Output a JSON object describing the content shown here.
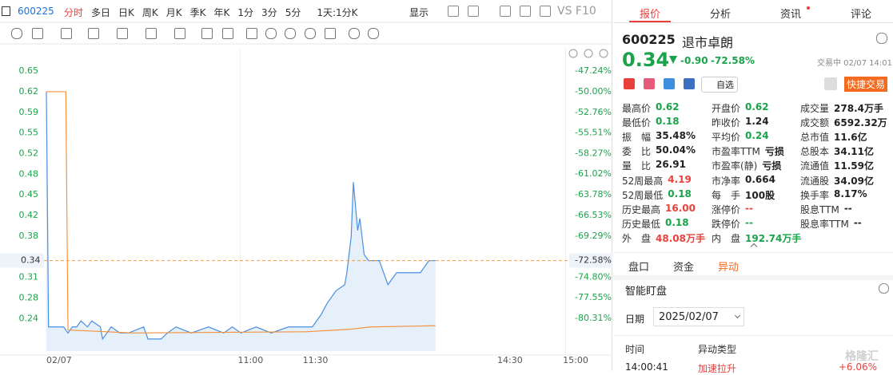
{
  "toolbar": {
    "code": "600225",
    "tabs": [
      "分时",
      "多日",
      "日K",
      "周K",
      "月K",
      "季K",
      "年K",
      "1分",
      "3分",
      "5分",
      "1天:1分K"
    ],
    "active": "分时",
    "display": "显示",
    "compare": "VS F10"
  },
  "chart_data": {
    "type": "line",
    "xlim": [
      0,
      240
    ],
    "xticks": [
      {
        "value": 0,
        "label": "02/07"
      },
      {
        "value": 90,
        "label": "11:00"
      },
      {
        "value": 120,
        "label": "11:30"
      },
      {
        "value": 210,
        "label": "14:30"
      },
      {
        "value": 240,
        "label": "15:00"
      }
    ],
    "ylim": [
      0.19,
      0.69
    ],
    "yticks": [
      {
        "value": 0.6542,
        "label": "0.65"
      },
      {
        "value": 0.62,
        "label": "0.62"
      },
      {
        "value": 0.5858,
        "label": "0.59"
      },
      {
        "value": 0.5516,
        "label": "0.55"
      },
      {
        "value": 0.5174,
        "label": "0.52"
      },
      {
        "value": 0.4832,
        "label": "0.48"
      },
      {
        "value": 0.449,
        "label": "0.45"
      },
      {
        "value": 0.4148,
        "label": "0.42"
      },
      {
        "value": 0.3806,
        "label": "0.38"
      },
      {
        "value": 0.3122,
        "label": "0.31"
      },
      {
        "value": 0.278,
        "label": "0.28"
      },
      {
        "value": 0.2438,
        "label": "0.24"
      }
    ],
    "y2lim": [
      -84.68,
      -44.35
    ],
    "y2ticks": [
      {
        "value": -47.24,
        "label": "-47.24%"
      },
      {
        "value": -50,
        "label": "-50.00%"
      },
      {
        "value": -52.76,
        "label": "-52.76%"
      },
      {
        "value": -55.51,
        "label": "-55.51%"
      },
      {
        "value": -58.27,
        "label": "-58.27%"
      },
      {
        "value": -61.02,
        "label": "-61.02%"
      },
      {
        "value": -63.78,
        "label": "-63.78%"
      },
      {
        "value": -66.53,
        "label": "-66.53%"
      },
      {
        "value": -69.29,
        "label": "-69.29%"
      },
      {
        "value": -74.8,
        "label": "-74.80%"
      },
      {
        "value": -77.55,
        "label": "-77.55%"
      },
      {
        "value": -80.31,
        "label": "-80.31%"
      }
    ],
    "price_line": {
      "value": 0.34,
      "label": "0.34",
      "y2_label": "-72.58%",
      "color": "#f59a3c"
    },
    "series": [
      {
        "color": "#4a8fe0",
        "fill": "#e6f0fb",
        "x": [
          0,
          1,
          8,
          10,
          12,
          14,
          16,
          19,
          21,
          25,
          26,
          30,
          34,
          38,
          45,
          47,
          53,
          56,
          60,
          67,
          75,
          82,
          86,
          90,
          97,
          104,
          112,
          119,
          123,
          127,
          130,
          134,
          138,
          139,
          141,
          142,
          144,
          145,
          147,
          149,
          154,
          158,
          162,
          164,
          173,
          175,
          177,
          180
        ],
        "values": [
          0.62,
          0.23,
          0.23,
          0.22,
          0.23,
          0.23,
          0.24,
          0.23,
          0.24,
          0.23,
          0.21,
          0.23,
          0.22,
          0.22,
          0.23,
          0.21,
          0.21,
          0.22,
          0.23,
          0.22,
          0.23,
          0.22,
          0.23,
          0.22,
          0.23,
          0.22,
          0.23,
          0.23,
          0.23,
          0.25,
          0.27,
          0.29,
          0.3,
          0.32,
          0.38,
          0.47,
          0.39,
          0.41,
          0.35,
          0.34,
          0.34,
          0.3,
          0.32,
          0.32,
          0.32,
          0.33,
          0.34,
          0.34
        ]
      },
      {
        "color": "#f5923e",
        "x": [
          0,
          9,
          10,
          40,
          120,
          140,
          150,
          180
        ],
        "values": [
          0.62,
          0.62,
          0.225,
          0.22,
          0.222,
          0.226,
          0.23,
          0.232
        ]
      }
    ]
  },
  "panel": {
    "tabs": [
      "报价",
      "分析",
      "资讯",
      "评论"
    ],
    "active": "报价"
  },
  "quote": {
    "code": "600225",
    "name": "退市卓朗",
    "price": "0.34",
    "change": "-0.90",
    "change_pct": "-72.58%",
    "status": "交易中 02/07 14:01",
    "watch": "自选",
    "trade": "快捷交易",
    "stats": [
      [
        {
          "label": "最高价",
          "value": "0.62",
          "color": "#1aa34a"
        },
        {
          "label": "最低价",
          "value": "0.18",
          "color": "#1aa34a"
        },
        {
          "label": "振　幅",
          "value": "35.48%",
          "color": "#222222"
        },
        {
          "label": "委　比",
          "value": "50.04%",
          "color": "#222222"
        },
        {
          "label": "量　比",
          "value": "26.91",
          "color": "#222222"
        },
        {
          "label": "52周最高",
          "value": "4.19",
          "color": "#e8413c"
        },
        {
          "label": "52周最低",
          "value": "0.18",
          "color": "#1aa34a"
        },
        {
          "label": "历史最高",
          "value": "16.00",
          "color": "#e8413c"
        },
        {
          "label": "历史最低",
          "value": "0.18",
          "color": "#1aa34a"
        },
        {
          "label": "外　盘",
          "value": "48.08万手",
          "color": "#e8413c"
        }
      ],
      [
        {
          "label": "开盘价",
          "value": "0.62",
          "color": "#1aa34a"
        },
        {
          "label": "昨收价",
          "value": "1.24",
          "color": "#222222"
        },
        {
          "label": "平均价",
          "value": "0.24",
          "color": "#1aa34a"
        },
        {
          "label": "市盈率TTM",
          "value": "亏损",
          "color": "#222222"
        },
        {
          "label": "市盈率(静)",
          "value": "亏损",
          "color": "#222222"
        },
        {
          "label": "市净率",
          "value": "0.664",
          "color": "#222222"
        },
        {
          "label": "每　手",
          "value": "100股",
          "color": "#222222"
        },
        {
          "label": "涨停价",
          "value": "--",
          "color": "#e8413c"
        },
        {
          "label": "跌停价",
          "value": "--",
          "color": "#1aa34a"
        },
        {
          "label": "内　盘",
          "value": "192.74万手",
          "color": "#1aa34a"
        }
      ],
      [
        {
          "label": "成交量",
          "value": "278.4万手",
          "color": "#222222"
        },
        {
          "label": "成交额",
          "value": "6592.32万",
          "color": "#222222"
        },
        {
          "label": "总市值",
          "value": "11.6亿",
          "color": "#222222"
        },
        {
          "label": "总股本",
          "value": "34.11亿",
          "color": "#222222"
        },
        {
          "label": "流通值",
          "value": "11.59亿",
          "color": "#222222"
        },
        {
          "label": "流通股",
          "value": "34.09亿",
          "color": "#222222"
        },
        {
          "label": "换手率",
          "value": "8.17%",
          "color": "#222222"
        },
        {
          "label": "股息TTM",
          "value": "--",
          "color": "#222222"
        },
        {
          "label": "股息率TTM",
          "value": "--",
          "color": "#222222"
        }
      ]
    ]
  },
  "sub_tabs": {
    "items": [
      "盘口",
      "资金",
      "异动"
    ],
    "active": "异动"
  },
  "monitor": {
    "title": "智能盯盘",
    "date_label": "日期",
    "date": "2025/02/07",
    "columns": [
      "时间",
      "异动类型"
    ],
    "rows": [
      [
        "14:00:41",
        "加速拉升",
        "+6.06%"
      ]
    ]
  },
  "watermark": "格隆汇"
}
